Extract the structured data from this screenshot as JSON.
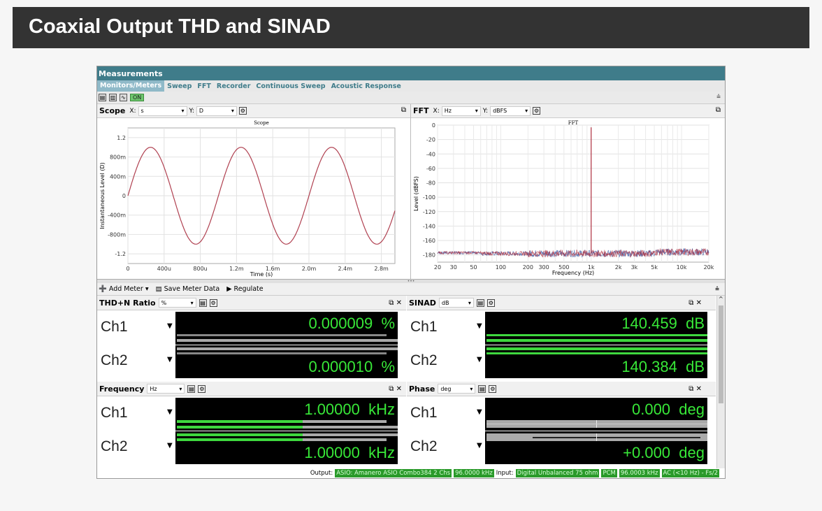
{
  "page_title": "Coaxial Output THD and SINAD",
  "app": {
    "title": "Measurements",
    "tabs": [
      "Monitors/Meters",
      "Sweep",
      "FFT",
      "Recorder",
      "Continuous Sweep",
      "Acoustic Response"
    ],
    "active_tab": "Monitors/Meters",
    "toggle_label": "ON"
  },
  "scope": {
    "label": "Scope",
    "x_axis": "X:",
    "x_unit": "s",
    "y_axis": "Y:",
    "y_unit": "D",
    "chart_title": "Scope",
    "xlabel": "Time (s)",
    "ylabel": "Instantaneous Level (D)"
  },
  "fft": {
    "label": "FFT",
    "x_axis": "X:",
    "x_unit": "Hz",
    "y_axis": "Y:",
    "y_unit": "dBFS",
    "chart_title": "FFT",
    "xlabel": "Frequency (Hz)",
    "ylabel": "Level (dBFS)"
  },
  "chart_data": [
    {
      "type": "line",
      "title": "Scope",
      "xlabel": "Time (s)",
      "ylabel": "Instantaneous Level (D)",
      "x_ticks": [
        "0",
        "400u",
        "800u",
        "1.2m",
        "1.6m",
        "2.0m",
        "2.4m",
        "2.8m"
      ],
      "y_ticks": [
        "1.2",
        "800m",
        "400m",
        "0",
        "-400m",
        "-800m",
        "-1.2"
      ],
      "xlim": [
        0,
        0.00295
      ],
      "ylim": [
        -1.4,
        1.4
      ],
      "series": [
        {
          "frequency_hz": 1000,
          "amplitude": 1.0,
          "color": "#b04050"
        }
      ],
      "grid": true
    },
    {
      "type": "line",
      "title": "FFT",
      "xlabel": "Frequency (Hz)",
      "ylabel": "Level (dBFS)",
      "x_scale": "log",
      "x_ticks": [
        "20",
        "30",
        "50",
        "100",
        "200",
        "300",
        "500",
        "1k",
        "2k",
        "3k",
        "5k",
        "10k",
        "20k"
      ],
      "y_ticks": [
        "0",
        "-20",
        "-40",
        "-60",
        "-80",
        "-100",
        "-120",
        "-140",
        "-160",
        "-180"
      ],
      "xlim": [
        20,
        20000
      ],
      "ylim": [
        -190,
        0
      ],
      "peak": {
        "x": 1000,
        "y": -3
      },
      "noise_floor_db": -178,
      "series_colors": [
        "#3050a0",
        "#b03040"
      ],
      "grid": true
    }
  ],
  "meter_toolbar": {
    "add_meter": "Add Meter",
    "save_meter_data": "Save Meter Data",
    "regulate": "Regulate"
  },
  "meters": {
    "thd": {
      "title": "THD+N Ratio",
      "unit_select": "%",
      "ch1": {
        "label": "Ch1",
        "value": "0.000009",
        "unit": "%",
        "bar_fraction": 0.0
      },
      "ch2": {
        "label": "Ch2",
        "value": "0.000010",
        "unit": "%",
        "bar_fraction": 0.0
      }
    },
    "sinad": {
      "title": "SINAD",
      "unit_select": "dB",
      "ch1": {
        "label": "Ch1",
        "value": "140.459",
        "unit": "dB",
        "bar_fraction": 1.0
      },
      "ch2": {
        "label": "Ch2",
        "value": "140.384",
        "unit": "dB",
        "bar_fraction": 1.0
      }
    },
    "frequency": {
      "title": "Frequency",
      "unit_select": "Hz",
      "ch1": {
        "label": "Ch1",
        "value": "1.00000",
        "unit": "kHz",
        "bar_fraction": 0.57
      },
      "ch2": {
        "label": "Ch2",
        "value": "1.00000",
        "unit": "kHz",
        "bar_fraction": 0.57
      }
    },
    "phase": {
      "title": "Phase",
      "unit_select": "deg",
      "ch1": {
        "label": "Ch1",
        "value": "0.000",
        "unit": "deg",
        "bar_fraction": 0.0
      },
      "ch2": {
        "label": "Ch2",
        "value": "+0.000",
        "unit": "deg",
        "bar_fraction": 0.0
      }
    }
  },
  "status": {
    "output_label": "Output:",
    "output_device": "ASIO: Amanero ASIO Combo384 2 Chs",
    "output_rate": "96.0000 kHz",
    "input_label": "Input:",
    "input_device": "Digital Unbalanced 75 ohm",
    "input_format": "PCM",
    "input_rate": "96.0003 kHz",
    "input_filter": "AC (<10 Hz) - Fs/2"
  },
  "colors": {
    "accent": "#3f7c8a",
    "readout_green": "#38e838",
    "bar_green": "#3ed83e",
    "status_green": "#2a9a2a"
  }
}
